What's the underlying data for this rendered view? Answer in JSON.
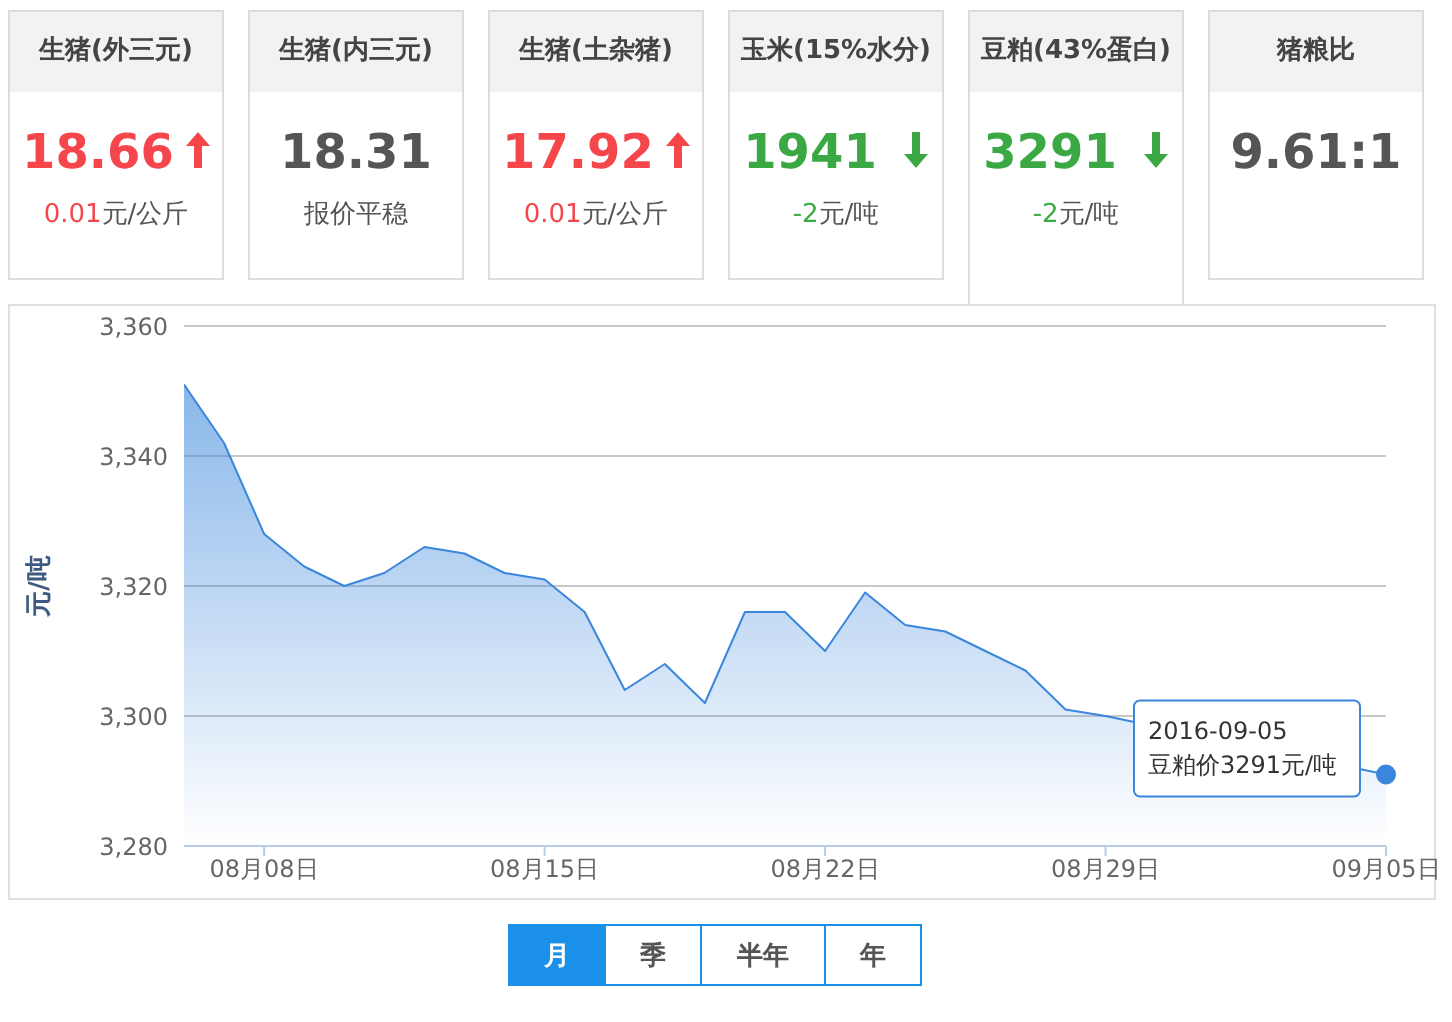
{
  "chart_data": [
    {
      "type": "other",
      "categories": [
        "生猪(外三元)",
        "生猪(内三元)",
        "生猪(土杂猪)",
        "玉米(15%水分)",
        "豆粕(43%蛋白)",
        "猪粮比"
      ],
      "value_labels": [
        "18.66",
        "18.31",
        "17.92",
        "1941",
        "3291",
        "9.61:1"
      ],
      "annotations": [
        "0.01元/公斤",
        "报价平稳",
        "0.01元/公斤",
        "-2元/吨",
        "-2元/吨"
      ]
    },
    {
      "type": "area",
      "ylabel": "元/吨",
      "x": [
        "2016-08-06",
        "2016-08-07",
        "2016-08-08",
        "2016-08-09",
        "2016-08-10",
        "2016-08-11",
        "2016-08-12",
        "2016-08-13",
        "2016-08-14",
        "2016-08-15",
        "2016-08-16",
        "2016-08-17",
        "2016-08-18",
        "2016-08-19",
        "2016-08-20",
        "2016-08-21",
        "2016-08-22",
        "2016-08-23",
        "2016-08-24",
        "2016-08-25",
        "2016-08-26",
        "2016-08-27",
        "2016-08-28",
        "2016-08-29",
        "2016-08-30",
        "2016-08-31",
        "2016-09-01",
        "2016-09-02",
        "2016-09-03",
        "2016-09-04",
        "2016-09-05"
      ],
      "series": [
        {
          "color": "#3a86dc",
          "values": [
            3351,
            3342,
            3328,
            3323,
            3320,
            3322,
            3326,
            3325,
            3322,
            3321,
            3316,
            3304,
            3308,
            3302,
            3316,
            3316,
            3310,
            3319,
            3314,
            3313,
            3310,
            3307,
            3301,
            3300,
            null,
            null,
            null,
            null,
            null,
            null,
            3291
          ]
        }
      ],
      "xlim": [
        "2016-08-06",
        "2016-09-05"
      ],
      "xticks": [
        {
          "value": "2016-08-08",
          "label": "08月08日"
        },
        {
          "value": "2016-08-15",
          "label": "08月15日"
        },
        {
          "value": "2016-08-22",
          "label": "08月22日"
        },
        {
          "value": "2016-08-29",
          "label": "08月29日"
        },
        {
          "value": "2016-09-05",
          "label": "09月05日"
        }
      ],
      "ylim": [
        3280,
        3360
      ],
      "yticks": [
        {
          "value": 3280,
          "label": "3,280"
        },
        {
          "value": 3300,
          "label": "3,300"
        },
        {
          "value": 3320,
          "label": "3,320"
        },
        {
          "value": 3340,
          "label": "3,340"
        },
        {
          "value": 3360,
          "label": "3,360"
        }
      ],
      "grid": "y",
      "legend": false,
      "annotations": [
        {
          "text": "2016-09-05\n豆粕价3291元/吨",
          "x": "2016-09-05",
          "y": 3291
        },
        "月",
        "季",
        "半年",
        "年"
      ]
    }
  ]
}
